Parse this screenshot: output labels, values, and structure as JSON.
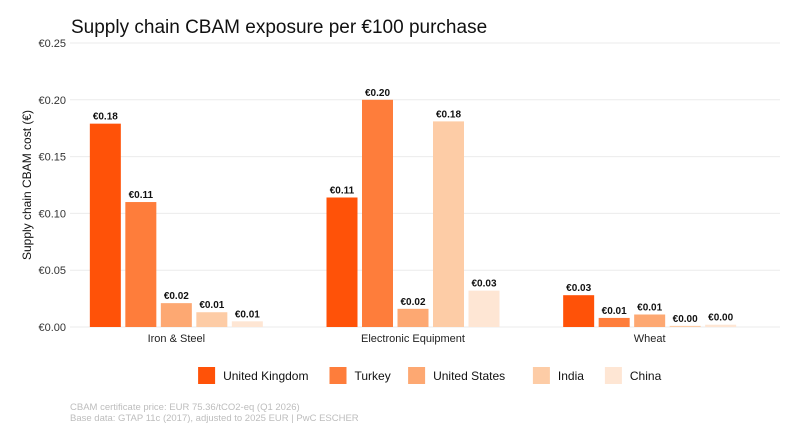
{
  "chart_data": {
    "type": "bar",
    "title": "Supply chain CBAM exposure per €100 purchase",
    "xlabel": "",
    "ylabel": "Supply chain CBAM cost (€)",
    "ylim": [
      0,
      0.25
    ],
    "yticks": [
      "€0.00",
      "€0.05",
      "€0.10",
      "€0.15",
      "€0.20",
      "€0.25"
    ],
    "grid": true,
    "legend_position": "bottom",
    "categories": [
      "Iron & Steel",
      "Electronic Equipment",
      "Wheat"
    ],
    "series": [
      {
        "name": "United Kingdom",
        "color": "#FF5208",
        "values": [
          0.179,
          0.114,
          0.028
        ],
        "labels": [
          "€0.18",
          "€0.11",
          "€0.03"
        ]
      },
      {
        "name": "Turkey",
        "color": "#FE7D3B",
        "values": [
          0.11,
          0.2,
          0.008
        ],
        "labels": [
          "€0.11",
          "€0.20",
          "€0.01"
        ]
      },
      {
        "name": "United States",
        "color": "#FDA872",
        "values": [
          0.021,
          0.016,
          0.011
        ],
        "labels": [
          "€0.02",
          "€0.02",
          "€0.01"
        ]
      },
      {
        "name": "India",
        "color": "#FDCCA6",
        "values": [
          0.013,
          0.181,
          0.001
        ],
        "labels": [
          "€0.01",
          "€0.18",
          "€0.00"
        ]
      },
      {
        "name": "China",
        "color": "#FEE6D4",
        "values": [
          0.005,
          0.032,
          0.002
        ],
        "labels": [
          "€0.01",
          "€0.03",
          "€0.00"
        ]
      }
    ]
  },
  "caption": {
    "line1": "CBAM certificate price: EUR 75.36/tCO2-eq (Q1 2026)",
    "line2": "Base data: GTAP 11c (2017), adjusted to 2025 EUR | PwC ESCHER"
  }
}
